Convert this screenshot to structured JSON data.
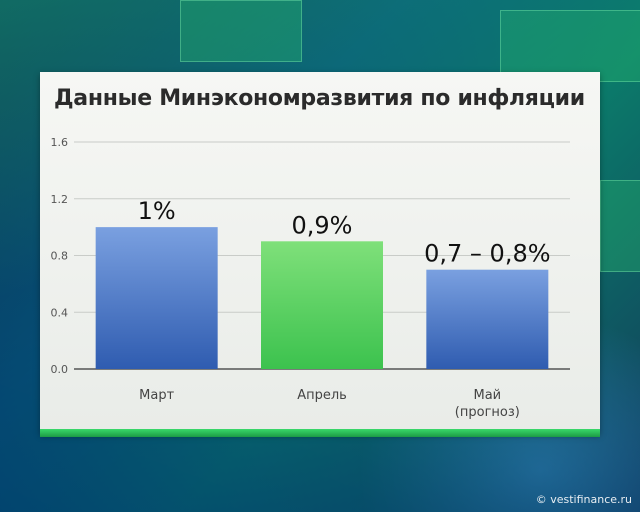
{
  "chart_data": {
    "type": "bar",
    "title": "Данные Минэкономразвития по инфляции",
    "categories": [
      [
        "Март"
      ],
      [
        "Апрель"
      ],
      [
        "Май",
        "(прогноз)"
      ]
    ],
    "values": [
      1.0,
      0.9,
      0.7
    ],
    "data_labels": [
      "1%",
      "0,9%",
      "0,7 – 0,8%"
    ],
    "bar_colors": [
      "#2f5cb0",
      "#3cc24e",
      "#2f5cb0"
    ],
    "bar_colors_light": [
      "#7aa0e0",
      "#7fe07a",
      "#7aa0e0"
    ],
    "ylim": [
      0,
      1.6
    ],
    "yticks": [
      "0.0",
      "0.4",
      "0.8",
      "1.2",
      "1.6"
    ],
    "xlabel": "",
    "ylabel": "",
    "grid": true
  },
  "watermark": "© vestifinance.ru"
}
